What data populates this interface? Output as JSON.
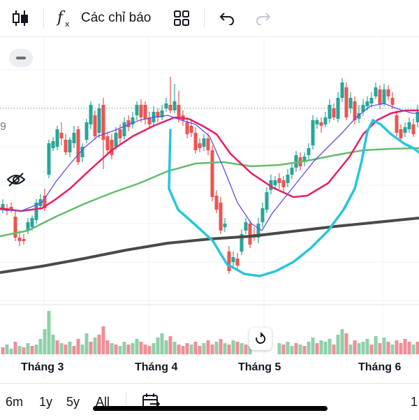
{
  "toolbar": {
    "candle_icon": "candlestick-icon",
    "indicators_label": "Các chỉ báo",
    "layout_icon": "grid-layout-icon",
    "undo_icon": "undo-icon",
    "redo_icon": "redo-icon"
  },
  "price_axis": {
    "partial_label": "9"
  },
  "time_axis": {
    "labels": [
      "Tháng 3",
      "Tháng 4",
      "Tháng 5",
      "Tháng 6"
    ]
  },
  "ranges": {
    "items": [
      "6m",
      "1y",
      "5y",
      "All"
    ],
    "active": "All",
    "right_partial": "1"
  },
  "colors": {
    "up": "#26a69a",
    "down": "#ef5350",
    "up_volume": "#8fd0a8",
    "down_volume": "#f08e97",
    "ma_fast": "#5b4ef0",
    "ma_mid": "#e91e63",
    "ma_slow": "#66bb6a",
    "ma_long": "#4a4a4a",
    "annotation": "#26c6da"
  }
}
